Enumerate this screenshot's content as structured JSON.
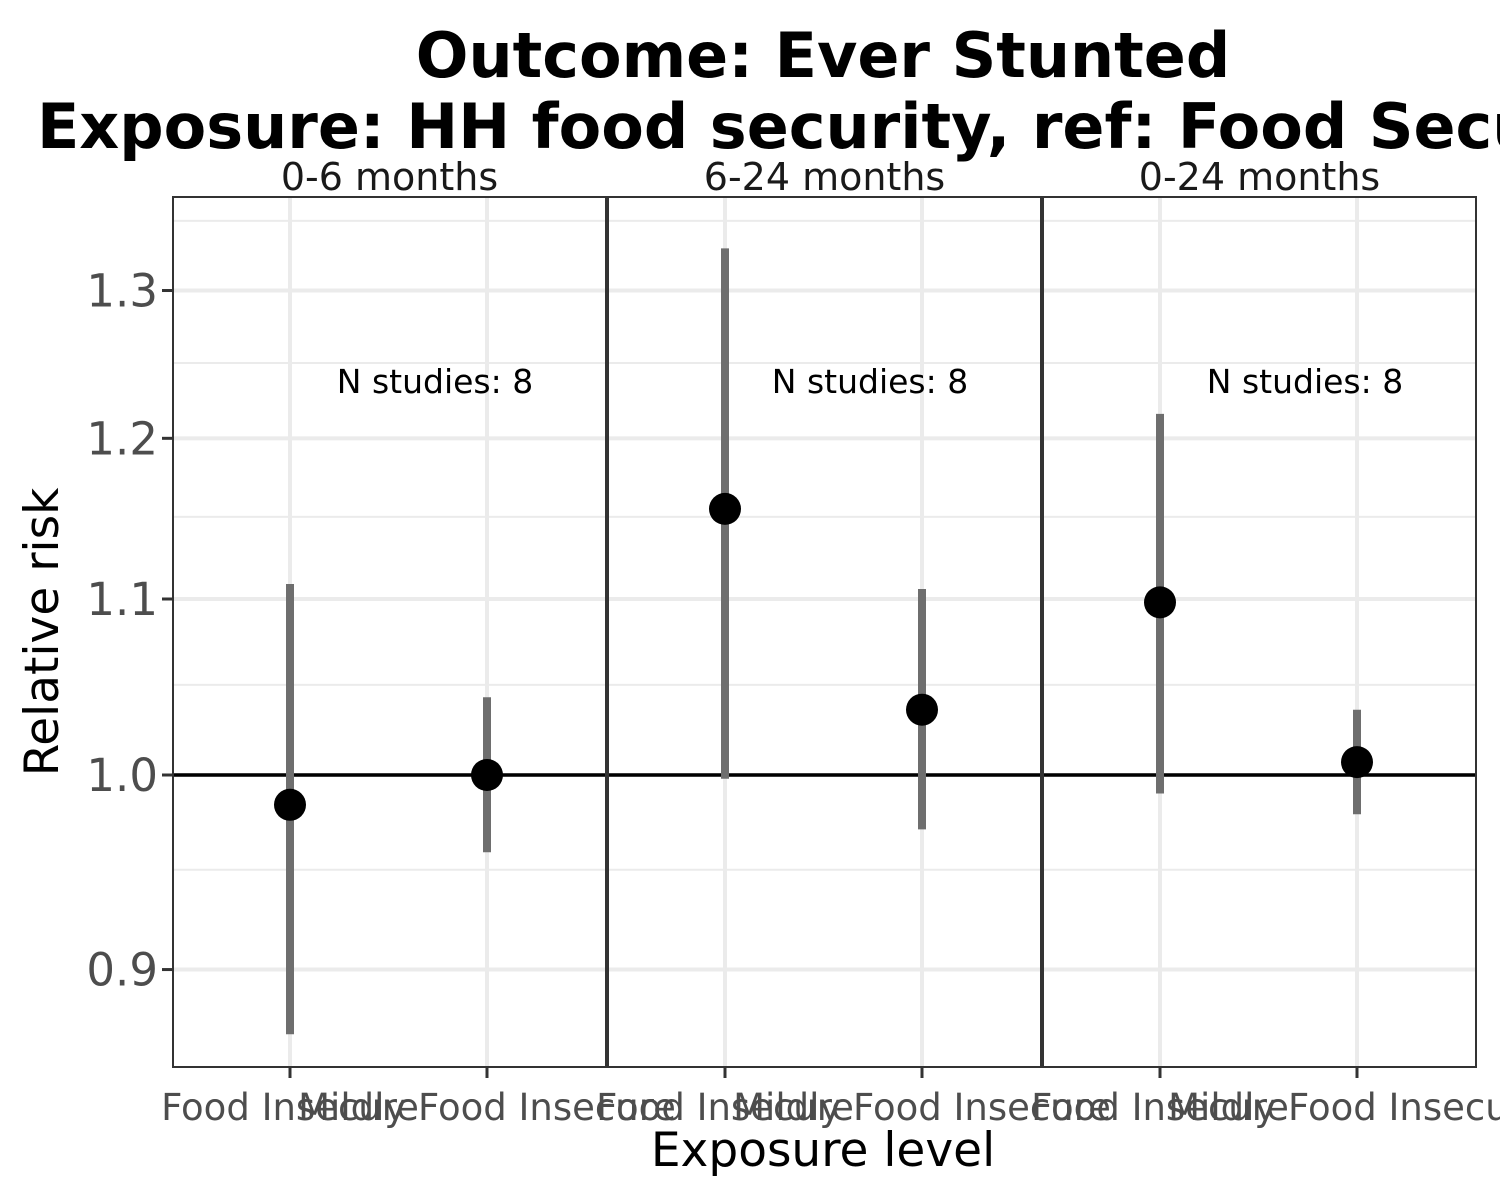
{
  "chart_data": {
    "type": "scatter",
    "title": "Outcome: Ever Stunted",
    "subtitle": "Exposure: HH food security, ref: Food Secure",
    "xlabel": "Exposure level",
    "ylabel": "Relative risk",
    "ylim": [
      0.85,
      1.355
    ],
    "log_scale_y": true,
    "y_ticks": [
      0.9,
      1.0,
      1.1,
      1.2,
      1.3
    ],
    "y_tick_labels": [
      "0.9",
      "1.0",
      "1.1",
      "1.2",
      "1.3"
    ],
    "reference_line": 1.0,
    "grid": true,
    "categories": [
      "Food Insecure",
      "Mildly Food Insecure"
    ],
    "panels": [
      {
        "label": "0-6 months",
        "annotation": "N studies: 8",
        "points": [
          {
            "category": "Food Insecure",
            "estimate": 0.984,
            "lower": 0.869,
            "upper": 1.109
          },
          {
            "category": "Mildly Food Insecure",
            "estimate": 1.0,
            "lower": 0.959,
            "upper": 1.043
          }
        ]
      },
      {
        "label": "6-24 months",
        "annotation": "N studies: 8",
        "points": [
          {
            "category": "Food Insecure",
            "estimate": 1.155,
            "lower": 0.998,
            "upper": 1.33
          },
          {
            "category": "Mildly Food Insecure",
            "estimate": 1.036,
            "lower": 0.971,
            "upper": 1.106
          }
        ]
      },
      {
        "label": "0-24 months",
        "annotation": "N studies: 8",
        "points": [
          {
            "category": "Food Insecure",
            "estimate": 1.098,
            "lower": 0.99,
            "upper": 1.216
          },
          {
            "category": "Mildly Food Insecure",
            "estimate": 1.007,
            "lower": 0.979,
            "upper": 1.036
          }
        ]
      }
    ]
  },
  "colors": {
    "point": "#000000",
    "interval": "#6e6e6e",
    "reference_line": "#000000",
    "grid": "#ebebeb",
    "panel_border": "#333333"
  }
}
